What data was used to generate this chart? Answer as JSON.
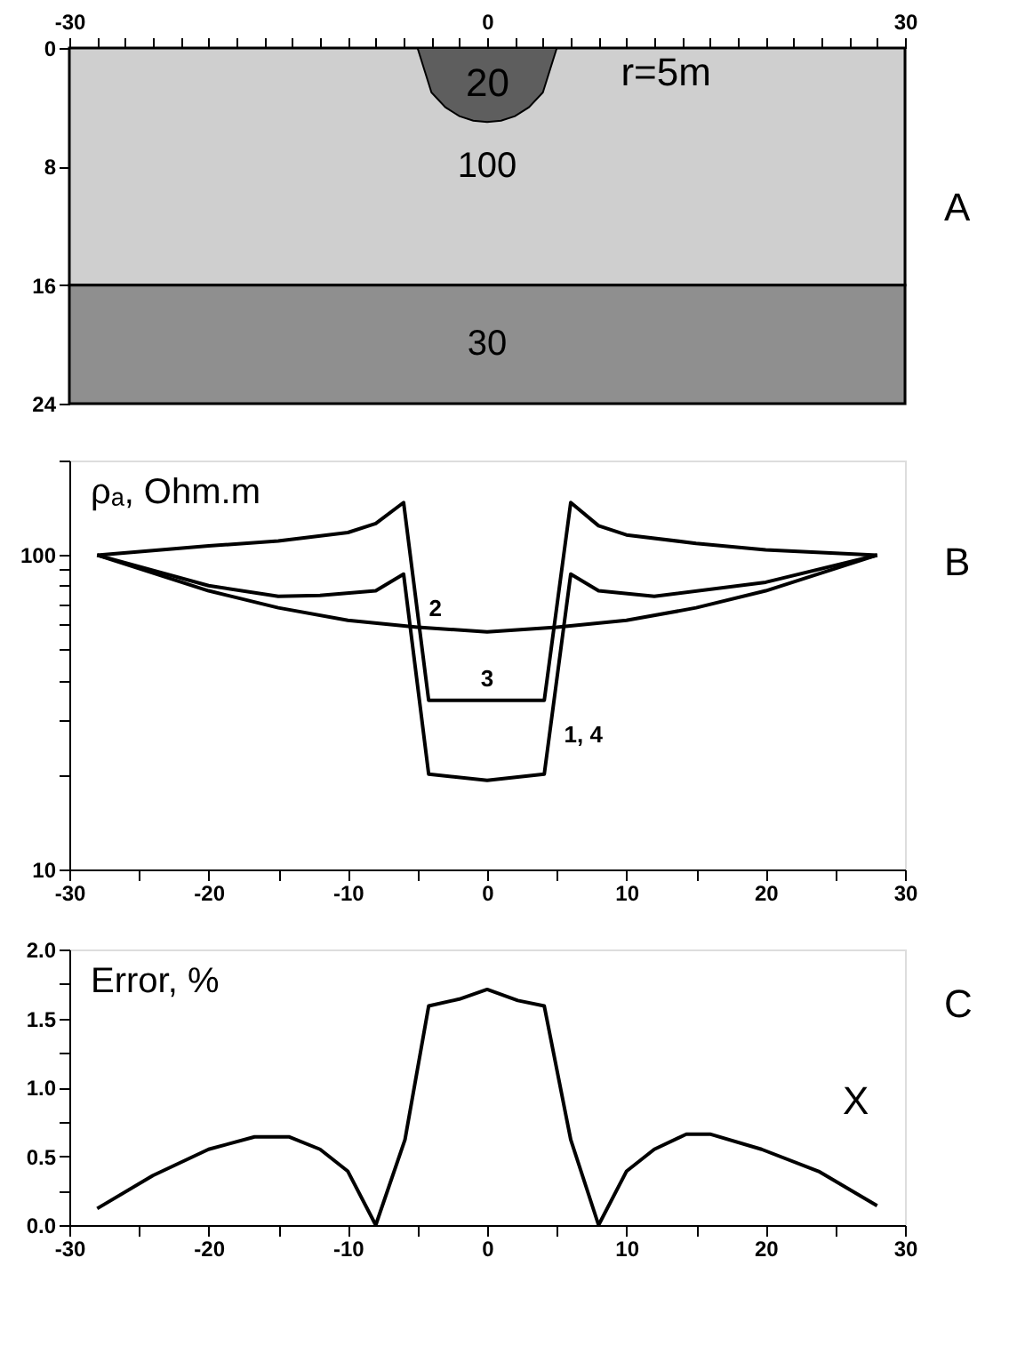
{
  "chart_data": [
    {
      "type": "area",
      "xlim": [
        -30,
        30
      ],
      "xticks": [
        -30,
        {
          "value": -28,
          "label": null
        },
        {
          "value": -26,
          "label": null
        },
        {
          "value": -24,
          "label": null
        },
        {
          "value": -22,
          "label": null
        },
        {
          "value": -20,
          "label": null
        },
        {
          "value": -18,
          "label": null
        },
        {
          "value": -16,
          "label": null
        },
        {
          "value": -14,
          "label": null
        },
        {
          "value": -12,
          "label": null
        },
        {
          "value": -10,
          "label": null
        },
        {
          "value": -8,
          "label": null
        },
        {
          "value": -6,
          "label": null
        },
        {
          "value": -4,
          "label": null
        },
        {
          "value": -2,
          "label": null
        },
        0,
        {
          "value": 2,
          "label": null
        },
        {
          "value": 4,
          "label": null
        },
        {
          "value": 6,
          "label": null
        },
        {
          "value": 8,
          "label": null
        },
        {
          "value": 10,
          "label": null
        },
        {
          "value": 12,
          "label": null
        },
        {
          "value": 14,
          "label": null
        },
        {
          "value": 16,
          "label": null
        },
        {
          "value": 18,
          "label": null
        },
        {
          "value": 20,
          "label": null
        },
        {
          "value": 22,
          "label": null
        },
        {
          "value": 24,
          "label": null
        },
        {
          "value": 26,
          "label": null
        },
        {
          "value": 28,
          "label": null
        },
        30
      ],
      "ylim": [
        24,
        0
      ],
      "yticks": [
        0,
        8,
        16,
        24
      ],
      "grid": false,
      "bands": [
        {
          "axis": "y",
          "from": 0,
          "to": 16,
          "label": "100",
          "color": "#cfcfcf"
        },
        {
          "axis": "y",
          "from": 16,
          "to": 24,
          "label": "30",
          "color": "#8f8f8f"
        }
      ],
      "series": [
        {
          "x": [
            -5,
            -4,
            -3,
            -2,
            -1,
            0,
            1,
            2,
            3,
            4,
            5
          ],
          "values": [
            0,
            3,
            4,
            4.6,
            4.9,
            5,
            4.9,
            4.6,
            4,
            3,
            0
          ],
          "color": "#5e5e5e"
        }
      ],
      "annotations": [
        "20",
        "r=5m",
        "A"
      ]
    },
    {
      "type": "line",
      "ylabel": "ρₐ, Ohm.m",
      "log": "y",
      "xlim": [
        -30,
        30
      ],
      "xticks": [
        -30,
        {
          "value": -25,
          "label": null
        },
        -20,
        {
          "value": -15,
          "label": null
        },
        -10,
        {
          "value": -5,
          "label": null
        },
        0,
        {
          "value": 5,
          "label": null
        },
        10,
        {
          "value": 15,
          "label": null
        },
        20,
        {
          "value": 25,
          "label": null
        },
        30
      ],
      "ylim": [
        10,
        200
      ],
      "yticks": [
        10,
        {
          "value": 20,
          "label": null
        },
        {
          "value": 30,
          "label": null
        },
        {
          "value": 40,
          "label": null
        },
        {
          "value": 50,
          "label": null
        },
        {
          "value": 60,
          "label": null
        },
        {
          "value": 70,
          "label": null
        },
        {
          "value": 80,
          "label": null
        },
        {
          "value": 90,
          "label": null
        },
        100,
        {
          "value": 200,
          "label": null
        }
      ],
      "grid": false,
      "marker": "none",
      "line_style": "solid",
      "series": [
        {
          "name": "2",
          "color": "#000000",
          "x": [
            -28,
            -20,
            -15,
            -10,
            -5,
            0,
            5,
            10,
            15,
            20,
            28
          ],
          "values": [
            100,
            77,
            68,
            62,
            59,
            57,
            59,
            62,
            68,
            77,
            100
          ]
        },
        {
          "name": "3",
          "color": "#000000",
          "x": [
            -28,
            -20,
            -15,
            -10,
            -8,
            -6,
            -4.2,
            0,
            4.1,
            6,
            8,
            10,
            15,
            20,
            28
          ],
          "values": [
            100,
            107,
            111,
            118,
            126,
            147,
            34.5,
            34.5,
            34.5,
            147,
            124,
            116,
            109,
            104,
            100
          ]
        },
        {
          "name": "1, 4",
          "color": "#000000",
          "x": [
            -28,
            -20,
            -15,
            -12,
            -8,
            -6,
            -4.2,
            0,
            4.1,
            6,
            8,
            12,
            20,
            28
          ],
          "values": [
            100,
            80,
            74,
            74.5,
            77,
            87,
            20.1,
            19.2,
            20.1,
            87,
            77,
            74,
            82,
            100
          ]
        }
      ],
      "annotations": [
        "B"
      ]
    },
    {
      "type": "line",
      "ylabel": "Error, %",
      "xlim": [
        -30,
        30
      ],
      "xticks": [
        -30,
        {
          "value": -25,
          "label": null
        },
        -20,
        {
          "value": -15,
          "label": null
        },
        -10,
        {
          "value": -5,
          "label": null
        },
        0,
        {
          "value": 5,
          "label": null
        },
        10,
        {
          "value": 15,
          "label": null
        },
        20,
        {
          "value": 25,
          "label": null
        },
        30
      ],
      "ylim": [
        0,
        2
      ],
      "yticks": [
        {
          "value": 0,
          "label": "0.0"
        },
        {
          "value": 0.25,
          "label": null
        },
        {
          "value": 0.5,
          "label": "0.5"
        },
        {
          "value": 0.75,
          "label": null
        },
        {
          "value": 1,
          "label": "1.0"
        },
        {
          "value": 1.25,
          "label": null
        },
        {
          "value": 1.5,
          "label": "1.5"
        },
        {
          "value": 1.75,
          "label": null
        },
        {
          "value": 2,
          "label": "2.0"
        }
      ],
      "grid": false,
      "marker": "none",
      "line_style": "solid",
      "series": [
        {
          "color": "#000000",
          "x": [
            -28,
            -24,
            -20,
            -16.7,
            -14.2,
            -12,
            -10,
            -8,
            -5.9,
            -4.2,
            -2,
            0,
            2.2,
            4.1,
            6,
            8,
            10,
            12,
            14.3,
            16,
            19.7,
            23.8,
            28
          ],
          "values": [
            0.12,
            0.36,
            0.55,
            0.64,
            0.64,
            0.55,
            0.39,
            0,
            0.62,
            1.59,
            1.64,
            1.71,
            1.63,
            1.59,
            0.62,
            0,
            0.39,
            0.55,
            0.66,
            0.66,
            0.55,
            0.39,
            0.14
          ]
        }
      ],
      "annotations": [
        "C",
        "X"
      ]
    }
  ]
}
